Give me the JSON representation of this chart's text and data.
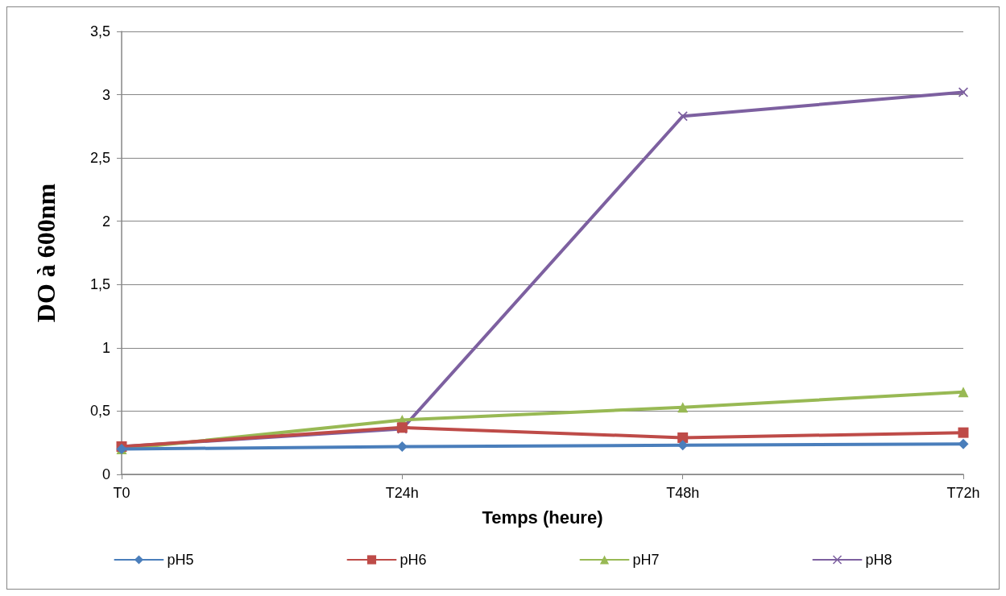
{
  "chart_data": {
    "type": "line",
    "xlabel": "Temps (heure)",
    "ylabel": "DO à 600nm",
    "categories": [
      "T0",
      "T24h",
      "T48h",
      "T72h"
    ],
    "series": [
      {
        "name": "pH5",
        "color": "#4a7ebb",
        "marker": "diamond",
        "values": [
          0.2,
          0.22,
          0.23,
          0.24
        ]
      },
      {
        "name": "pH6",
        "color": "#be4b48",
        "marker": "square",
        "values": [
          0.22,
          0.37,
          0.29,
          0.33
        ]
      },
      {
        "name": "pH7",
        "color": "#98b954",
        "marker": "triangle",
        "values": [
          0.2,
          0.43,
          0.53,
          0.65
        ]
      },
      {
        "name": "pH8",
        "color": "#7d60a0",
        "marker": "cross",
        "values": [
          0.22,
          0.36,
          2.83,
          3.02
        ]
      }
    ],
    "ylim": [
      0,
      3.5
    ],
    "yticks": [
      0,
      {
        "value": 0.5,
        "label": "0,5"
      },
      1,
      {
        "value": 1.5,
        "label": "1,5"
      },
      2,
      {
        "value": 2.5,
        "label": "2,5"
      },
      3,
      {
        "value": 3.5,
        "label": "3,5"
      }
    ],
    "grid": "y",
    "legend": "bottom",
    "line_style": "solid"
  }
}
